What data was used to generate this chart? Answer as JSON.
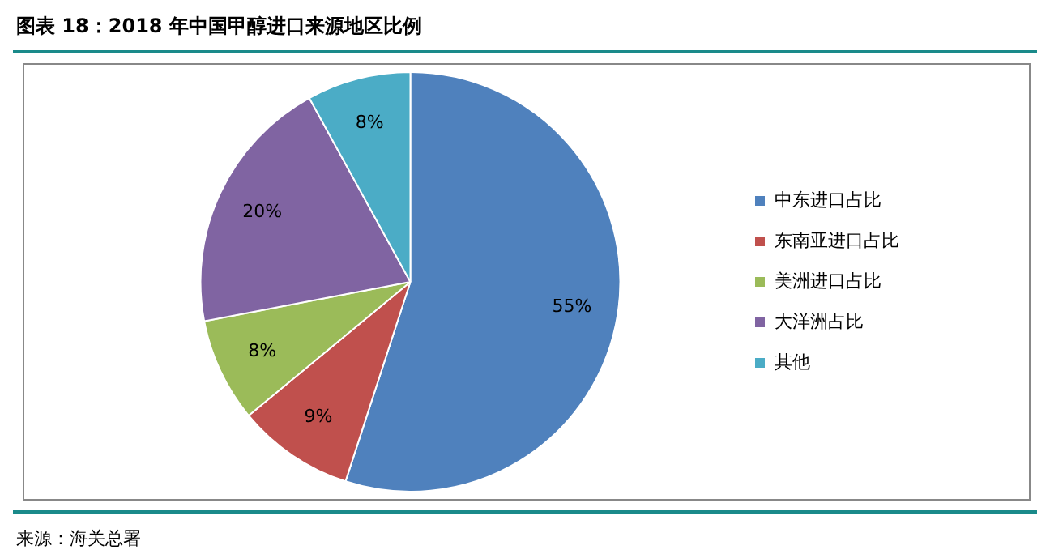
{
  "chart_data": {
    "type": "pie",
    "title": "图表 18：2018 年中国甲醇进口来源地区比例",
    "categories": [
      "中东进口占比",
      "东南亚进口占比",
      "美洲进口占比",
      "大洋洲占比",
      "其他"
    ],
    "values": [
      55,
      9,
      8,
      20,
      8
    ],
    "colors": [
      "#4f81bd",
      "#c0504d",
      "#9bbb59",
      "#8064a2",
      "#4bacc6"
    ],
    "value_labels": [
      "55%",
      "9%",
      "8%",
      "20%",
      "8%"
    ],
    "legend": "right",
    "annotations": [
      "来源：海关总署"
    ]
  }
}
